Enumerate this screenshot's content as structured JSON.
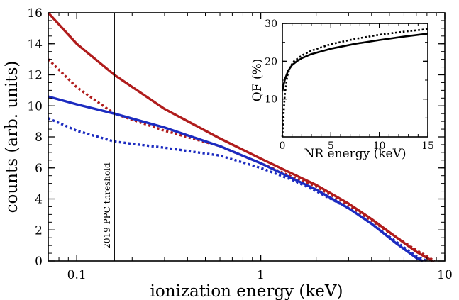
{
  "chart_data": [
    {
      "type": "line",
      "title": "",
      "xlabel": "ionization energy (keV)",
      "ylabel": "counts (arb. units)",
      "xscale": "log",
      "xlim": [
        0.07,
        10
      ],
      "ylim": [
        0,
        16
      ],
      "xticks": [
        0.1,
        1,
        10
      ],
      "xtick_labels": [
        "0.1",
        "1",
        "10"
      ],
      "yticks": [
        0,
        2,
        4,
        6,
        8,
        10,
        12,
        14,
        16
      ],
      "ytick_labels": [
        "0",
        "2",
        "4",
        "6",
        "8",
        "10",
        "12",
        "14",
        "16"
      ],
      "grid": false,
      "series": [
        {
          "color": "#b01c1c",
          "style": "solid",
          "x": [
            0.07,
            0.1,
            0.16,
            0.3,
            0.6,
            1.0,
            1.5,
            2.0,
            3.0,
            4.0,
            5.5,
            7.0,
            8.0,
            8.6
          ],
          "y": [
            16.0,
            14.0,
            12.0,
            9.8,
            7.9,
            6.6,
            5.6,
            4.9,
            3.7,
            2.7,
            1.5,
            0.6,
            0.2,
            0.0
          ]
        },
        {
          "color": "#b01c1c",
          "style": "dotted",
          "x": [
            0.07,
            0.1,
            0.16,
            0.3,
            0.6,
            1.0,
            1.5,
            2.0,
            3.0,
            4.0,
            5.5,
            7.0,
            8.0,
            8.8
          ],
          "y": [
            13.0,
            11.2,
            9.5,
            8.4,
            7.4,
            6.3,
            5.4,
            4.8,
            3.6,
            2.6,
            1.5,
            0.7,
            0.3,
            0.0
          ]
        },
        {
          "color": "#1c2bc0",
          "style": "solid",
          "x": [
            0.07,
            0.1,
            0.16,
            0.3,
            0.6,
            1.0,
            1.5,
            2.0,
            3.0,
            4.0,
            5.5,
            7.0,
            7.6
          ],
          "y": [
            10.6,
            10.1,
            9.5,
            8.6,
            7.4,
            6.3,
            5.3,
            4.6,
            3.4,
            2.4,
            1.1,
            0.2,
            0.0
          ]
        },
        {
          "color": "#1c2bc0",
          "style": "dotted",
          "x": [
            0.07,
            0.1,
            0.16,
            0.3,
            0.6,
            1.0,
            1.5,
            2.0,
            3.0,
            4.0,
            5.5,
            7.0,
            8.0
          ],
          "y": [
            9.2,
            8.4,
            7.7,
            7.3,
            6.8,
            6.0,
            5.2,
            4.5,
            3.4,
            2.4,
            1.2,
            0.3,
            0.0
          ]
        }
      ],
      "annotations": [
        {
          "text": "2019 PPC threshold",
          "x": 0.16
        }
      ]
    },
    {
      "type": "line",
      "title": "",
      "xlabel": "NR energy (keV)",
      "ylabel": "QF (%)",
      "xlim": [
        0,
        15
      ],
      "ylim": [
        0,
        30
      ],
      "xticks": [
        0,
        5,
        10,
        15
      ],
      "xtick_labels": [
        "0",
        "5",
        "10",
        "15"
      ],
      "yticks": [
        10,
        20,
        30
      ],
      "ytick_labels": [
        "10",
        "20",
        "30"
      ],
      "series": [
        {
          "color": "#000000",
          "style": "solid",
          "x": [
            0.0,
            0.15,
            0.3,
            0.6,
            1.0,
            1.5,
            2.0,
            3.0,
            5.0,
            7.5,
            10.0,
            12.5,
            15.0
          ],
          "y": [
            12.0,
            14.0,
            15.5,
            17.5,
            19.0,
            20.0,
            20.8,
            21.9,
            23.3,
            24.6,
            25.6,
            26.5,
            27.3
          ]
        },
        {
          "color": "#000000",
          "style": "dotted",
          "x": [
            0.0,
            0.1,
            0.25,
            0.5,
            0.8,
            1.2,
            2.0,
            3.0,
            5.0,
            7.5,
            10.0,
            12.5,
            15.0
          ],
          "y": [
            0.0,
            5.0,
            11.0,
            16.0,
            18.5,
            20.0,
            21.5,
            22.8,
            24.5,
            25.9,
            27.0,
            27.8,
            28.5
          ]
        }
      ]
    }
  ]
}
